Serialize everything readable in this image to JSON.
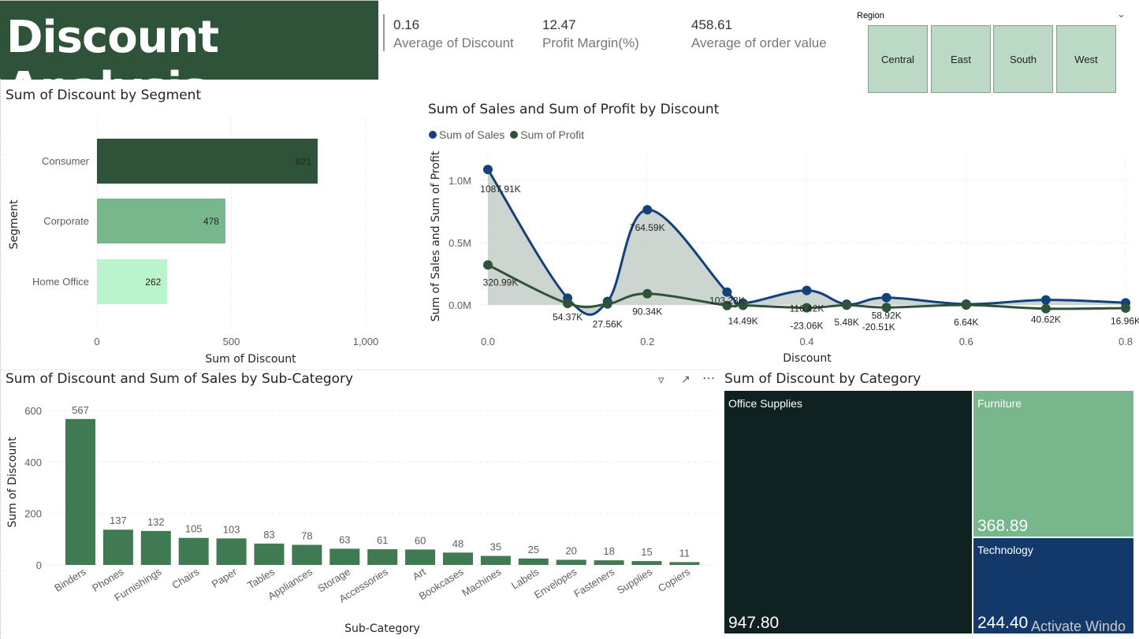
{
  "header": {
    "title": "Discount Analysis",
    "kpis": [
      {
        "value": "0.16",
        "label": "Average of Discount"
      },
      {
        "value": "12.47",
        "label": "Profit Margin(%)"
      },
      {
        "value": "458.61",
        "label": "Average of order value"
      }
    ]
  },
  "slicer": {
    "title": "Region",
    "options": [
      "Central",
      "East",
      "South",
      "West"
    ]
  },
  "colors": {
    "banner": "#2e5339",
    "consumer": "#2e5339",
    "corporate": "#78b68b",
    "home_office": "#b9f4cc",
    "sales_line": "#12417c",
    "profit_line": "#2e5339",
    "area_fill": "#c6d0ca",
    "subcat_bar": "#3f7a52",
    "office_supplies": "#0f2120",
    "furniture": "#78b68b",
    "technology": "#12396a"
  },
  "watermark": "Activate Windo",
  "chart_data": [
    {
      "type": "bar",
      "orientation": "horizontal",
      "title": "Sum of Discount by Segment",
      "xlabel": "Sum of Discount",
      "ylabel": "Segment",
      "categories": [
        "Consumer",
        "Corporate",
        "Home Office"
      ],
      "values": [
        821,
        478,
        262
      ],
      "data_labels": [
        "821",
        "478",
        "262"
      ],
      "x_ticks": [
        "0",
        "500",
        "1,000"
      ],
      "xlim": [
        0,
        1000
      ]
    },
    {
      "type": "area",
      "title": "Sum of Sales and Sum of Profit by Discount",
      "xlabel": "Discount",
      "ylabel": "Sum of Sales and Sum of Profit",
      "legend_position": "top-left",
      "x_ticks": [
        "0.0",
        "0.2",
        "0.4",
        "0.6",
        "0.8"
      ],
      "y_ticks": [
        "0.0M",
        "0.5M",
        "1.0M"
      ],
      "xlim": [
        0,
        0.8
      ],
      "ylim": [
        0,
        1.1
      ],
      "series": [
        {
          "name": "Sum of Sales",
          "x": [
            0,
            0.1,
            0.15,
            0.2,
            0.3,
            0.32,
            0.4,
            0.45,
            0.5,
            0.6,
            0.7,
            0.8
          ],
          "values": [
            1.08791,
            0.05437,
            0.02756,
            0.76459,
            0.10323,
            0.01449,
            0.11642,
            0.00548,
            0.05892,
            0.00664,
            0.04062,
            0.01696
          ],
          "labels": [
            "1087.91K",
            "54.37K",
            "27.56K",
            "764.59K",
            "103.23K",
            "14.49K",
            "116.42K",
            "5.48K",
            "58.92K",
            "6.64K",
            "40.62K",
            "16.96K"
          ]
        },
        {
          "name": "Sum of Profit",
          "x": [
            0,
            0.1,
            0.15,
            0.2,
            0.3,
            0.32,
            0.4,
            0.45,
            0.5,
            0.6,
            0.7,
            0.8
          ],
          "values": [
            0.32099,
            0.012,
            0.008,
            0.09034,
            -0.005,
            -0.003,
            -0.02306,
            -0.002,
            -0.02051,
            -0.001,
            -0.03,
            -0.025
          ],
          "labels": [
            "320.99K",
            "",
            "",
            "90.34K",
            "",
            "",
            "-23.06K",
            "",
            "-20.51K",
            "",
            "",
            ""
          ]
        }
      ]
    },
    {
      "type": "bar",
      "title": "Sum of Discount and Sum of Sales by Sub-Category",
      "xlabel": "Sub-Category",
      "ylabel": "Sum of Discount",
      "categories": [
        "Binders",
        "Phones",
        "Furnishings",
        "Chairs",
        "Paper",
        "Tables",
        "Appliances",
        "Storage",
        "Accessories",
        "Art",
        "Bookcases",
        "Machines",
        "Labels",
        "Envelopes",
        "Fasteners",
        "Supplies",
        "Copiers"
      ],
      "values": [
        567,
        137,
        132,
        105,
        103,
        83,
        78,
        63,
        61,
        60,
        48,
        35,
        25,
        20,
        18,
        15,
        11
      ],
      "y_ticks": [
        "0",
        "200",
        "400",
        "600"
      ],
      "ylim": [
        0,
        600
      ]
    },
    {
      "type": "treemap",
      "title": "Sum of Discount by Category",
      "categories": [
        "Office Supplies",
        "Furniture",
        "Technology"
      ],
      "values": [
        947.8,
        368.89,
        244.4
      ],
      "value_labels": [
        "947.80",
        "368.89",
        "244.40"
      ]
    }
  ]
}
